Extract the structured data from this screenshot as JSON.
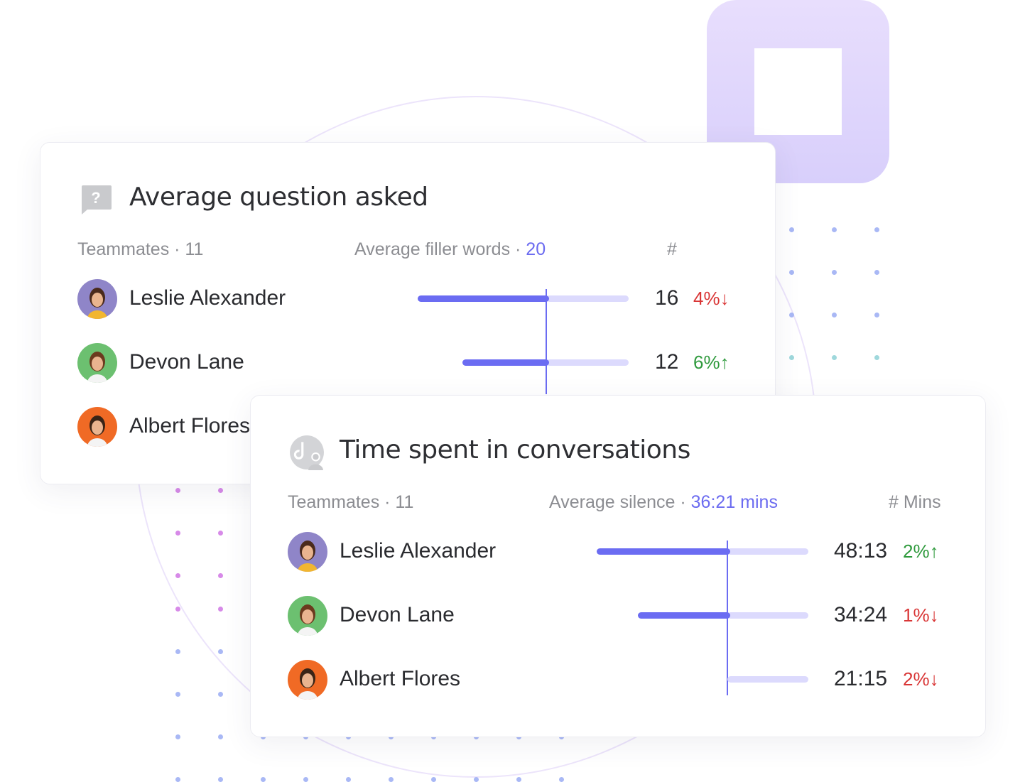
{
  "colors": {
    "accent": "#6b6cf2",
    "track": "#dcdafd",
    "up": "#2f9a3d",
    "down": "#d93636"
  },
  "card1": {
    "title": "Average question asked",
    "icon": "question-bubble-icon",
    "teammates_label": "Teammates · 11",
    "average_label": "Average filler words · ",
    "average_value": "20",
    "column_label": "#",
    "rows": [
      {
        "name": "Leslie Alexander",
        "value": "16",
        "delta": "4%",
        "trend": "down",
        "arrow": "↓",
        "bar_fraction": 0.57
      },
      {
        "name": "Devon Lane",
        "value": "12",
        "delta": "6%",
        "trend": "up",
        "arrow": "↑",
        "bar_fraction": 0.45
      },
      {
        "name": "Albert Flores"
      }
    ]
  },
  "card2": {
    "title": "Time spent in conversations",
    "icon": "conversation-person-icon",
    "teammates_label": "Teammates · 11",
    "average_label": "Average silence · ",
    "average_value": "36:21 mins",
    "column_label": "# Mins",
    "rows": [
      {
        "name": "Leslie Alexander",
        "value": "48:13",
        "delta": "2%",
        "trend": "up",
        "arrow": "↑",
        "bar_fraction": 0.62
      },
      {
        "name": "Devon Lane",
        "value": "34:24",
        "delta": "1%",
        "trend": "down",
        "arrow": "↓",
        "bar_fraction": 0.5
      },
      {
        "name": "Albert Flores",
        "value": "21:15",
        "delta": "2%",
        "trend": "down",
        "arrow": "↓",
        "bar_fraction": 0.2
      }
    ]
  }
}
